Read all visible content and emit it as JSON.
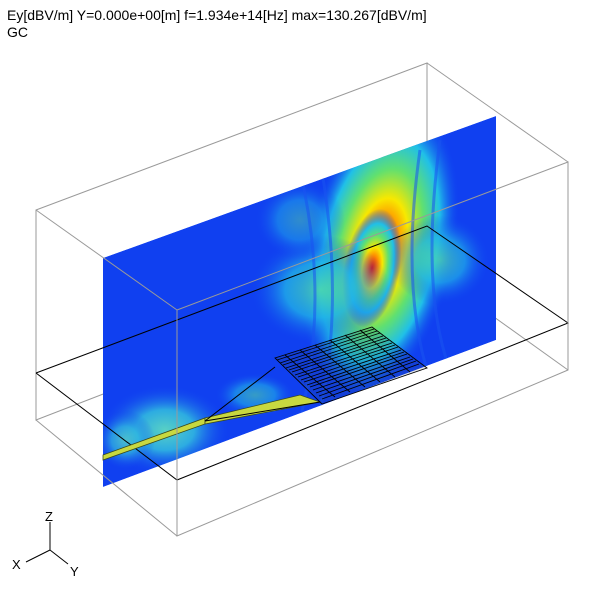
{
  "header": {
    "info_line": "Ey[dBV/m] Y=0.000e+00[m] f=1.934e+14[Hz] max=130.267[dBV/m]",
    "mode_label": "GC"
  },
  "axes": {
    "z_label": "Z",
    "x_label": "X",
    "y_label": "Y"
  },
  "colors": {
    "field_background": "#1040f0",
    "field_peak": "#e81000",
    "box_edge": "#9a9a9a",
    "grid_line": "#000000",
    "waveguide": "#c8d840"
  }
}
